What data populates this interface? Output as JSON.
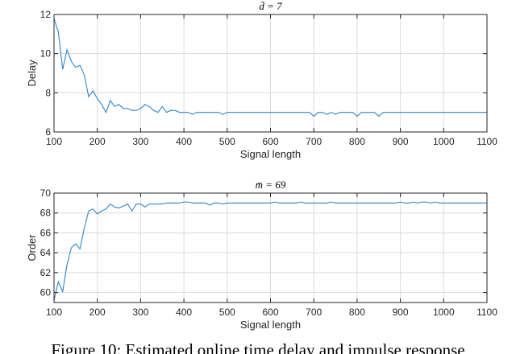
{
  "chart_data": [
    {
      "type": "line",
      "title": "d̄ = 7",
      "xlabel": "Signal length",
      "ylabel": "Delay",
      "xlim": [
        100,
        1100
      ],
      "ylim": [
        6,
        12
      ],
      "xticks": [
        100,
        200,
        300,
        400,
        500,
        600,
        700,
        800,
        900,
        1000,
        1100
      ],
      "yticks": [
        6,
        8,
        10,
        12
      ],
      "grid": true,
      "color": "#2e86c9",
      "series": [
        {
          "x": [
            100,
            110,
            120,
            130,
            140,
            150,
            160,
            170,
            180,
            190,
            200,
            210,
            220,
            230,
            240,
            250,
            260,
            270,
            280,
            290,
            300,
            310,
            320,
            330,
            340,
            350,
            360,
            370,
            380,
            390,
            400,
            410,
            420,
            430,
            440,
            450,
            460,
            470,
            480,
            490,
            500,
            510,
            520,
            530,
            540,
            550,
            560,
            570,
            580,
            590,
            600,
            610,
            620,
            630,
            640,
            650,
            660,
            670,
            680,
            690,
            700,
            710,
            720,
            730,
            740,
            750,
            760,
            770,
            780,
            790,
            800,
            810,
            820,
            830,
            840,
            850,
            860,
            870,
            880,
            890,
            900,
            910,
            920,
            930,
            940,
            950,
            960,
            970,
            980,
            990,
            1000,
            1010,
            1020,
            1030,
            1040,
            1050,
            1060,
            1070,
            1080,
            1090,
            1100
          ],
          "y": [
            11.8,
            11.1,
            9.2,
            10.2,
            9.6,
            9.3,
            9.4,
            8.9,
            7.8,
            8.1,
            7.7,
            7.4,
            7.0,
            7.6,
            7.3,
            7.4,
            7.2,
            7.2,
            7.1,
            7.1,
            7.2,
            7.4,
            7.3,
            7.1,
            7.0,
            7.3,
            7.0,
            7.1,
            7.1,
            7.0,
            7.0,
            7.0,
            6.9,
            7.0,
            7.0,
            7.0,
            7.0,
            7.0,
            7.0,
            6.9,
            7.0,
            7.0,
            7.0,
            7.0,
            7.0,
            7.0,
            7.0,
            7.0,
            7.0,
            7.0,
            7.0,
            7.0,
            7.0,
            7.0,
            7.0,
            7.0,
            7.0,
            7.0,
            7.0,
            7.0,
            6.8,
            7.0,
            7.0,
            6.9,
            7.0,
            6.9,
            7.0,
            7.0,
            7.0,
            7.0,
            6.8,
            7.0,
            7.0,
            7.0,
            7.0,
            6.8,
            7.0,
            7.0,
            7.0,
            7.0,
            7.0,
            7.0,
            7.0,
            7.0,
            7.0,
            7.0,
            7.0,
            7.0,
            7.0,
            7.0,
            7.0,
            7.0,
            7.0,
            7.0,
            7.0,
            7.0,
            7.0,
            7.0,
            7.0,
            7.0,
            7.0
          ]
        }
      ]
    },
    {
      "type": "line",
      "title": "m̄ = 69",
      "xlabel": "Signal length",
      "ylabel": "Order",
      "xlim": [
        100,
        1100
      ],
      "ylim": [
        59,
        70
      ],
      "xticks": [
        100,
        200,
        300,
        400,
        500,
        600,
        700,
        800,
        900,
        1000,
        1100
      ],
      "yticks": [
        60,
        62,
        64,
        66,
        68,
        70
      ],
      "grid": true,
      "color": "#2e86c9",
      "series": [
        {
          "x": [
            100,
            110,
            120,
            130,
            140,
            150,
            160,
            170,
            180,
            190,
            200,
            210,
            220,
            230,
            240,
            250,
            260,
            270,
            280,
            290,
            300,
            310,
            320,
            330,
            340,
            350,
            360,
            370,
            380,
            390,
            400,
            410,
            420,
            430,
            440,
            450,
            460,
            470,
            480,
            490,
            500,
            510,
            520,
            530,
            540,
            550,
            560,
            570,
            580,
            590,
            600,
            610,
            620,
            630,
            640,
            650,
            660,
            670,
            680,
            690,
            700,
            710,
            720,
            730,
            740,
            750,
            760,
            770,
            780,
            790,
            800,
            810,
            820,
            830,
            840,
            850,
            860,
            870,
            880,
            890,
            900,
            910,
            920,
            930,
            940,
            950,
            960,
            970,
            980,
            990,
            1000,
            1010,
            1020,
            1030,
            1040,
            1050,
            1060,
            1070,
            1080,
            1090,
            1100
          ],
          "y": [
            59.2,
            61.1,
            60.1,
            62.8,
            64.5,
            64.9,
            64.4,
            66.5,
            68.2,
            68.4,
            67.9,
            68.2,
            68.4,
            68.9,
            68.6,
            68.5,
            68.7,
            68.9,
            68.2,
            68.9,
            68.9,
            68.6,
            68.9,
            68.9,
            68.9,
            68.9,
            69.0,
            69.0,
            69.0,
            69.0,
            69.1,
            69.1,
            69.0,
            69.0,
            69.0,
            69.0,
            68.8,
            69.0,
            69.0,
            68.9,
            69.0,
            69.0,
            69.0,
            69.0,
            69.0,
            69.0,
            69.0,
            69.0,
            69.0,
            69.0,
            69.0,
            69.1,
            69.0,
            69.0,
            69.0,
            69.0,
            69.0,
            69.1,
            69.0,
            69.0,
            69.0,
            69.0,
            69.0,
            69.0,
            69.1,
            69.0,
            69.0,
            69.0,
            69.0,
            69.0,
            69.0,
            69.0,
            69.0,
            69.0,
            69.0,
            69.0,
            69.0,
            69.0,
            69.0,
            69.0,
            69.1,
            69.0,
            69.0,
            69.1,
            69.0,
            69.1,
            69.1,
            69.0,
            69.1,
            69.0,
            69.0,
            69.0,
            69.0,
            69.0,
            69.0,
            69.0,
            69.0,
            69.0,
            69.0,
            69.0,
            69.0
          ]
        }
      ]
    }
  ],
  "caption": "Figure 10: Estimated online time delay and impulse response"
}
